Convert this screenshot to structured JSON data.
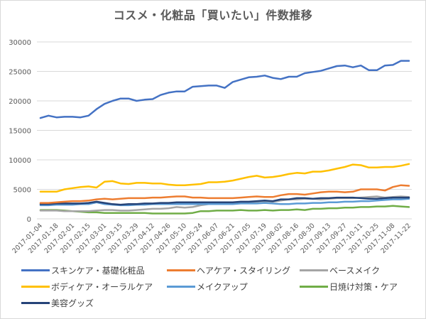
{
  "chart_data": {
    "type": "line",
    "title": "コスメ・化粧品「買いたい」件数推移",
    "xlabel": "",
    "ylabel": "",
    "ylim": [
      0,
      30000
    ],
    "yticks": [
      0,
      5000,
      10000,
      15000,
      20000,
      25000,
      30000
    ],
    "ytick_labels": [
      "0",
      "5000",
      "10000",
      "15000",
      "20000",
      "25000",
      "30000"
    ],
    "grid": true,
    "legend_position": "bottom",
    "x": [
      "2017-01-04",
      "2017-01-11",
      "2017-01-18",
      "2017-01-25",
      "2017-02-01",
      "2017-02-08",
      "2017-02-15",
      "2017-02-22",
      "2017-03-01",
      "2017-03-08",
      "2017-03-15",
      "2017-03-22",
      "2017-03-29",
      "2017-04-05",
      "2017-04-12",
      "2017-04-19",
      "2017-04-26",
      "2017-05-03",
      "2017-05-10",
      "2017-05-17",
      "2017-05-24",
      "2017-05-31",
      "2017-06-07",
      "2017-06-14",
      "2017-06-21",
      "2017-06-28",
      "2017-07-05",
      "2017-07-12",
      "2017-07-19",
      "2017-07-26",
      "2017-08-02",
      "2017-08-09",
      "2017-08-16",
      "2017-08-23",
      "2017-08-30",
      "2017-09-06",
      "2017-09-13",
      "2017-09-20",
      "2017-09-27",
      "2017-10-04",
      "2017-10-11",
      "2017-10-18",
      "2017-10-25",
      "2017-11-01",
      "2017-11-08",
      "2017-11-15",
      "2017-11-22"
    ],
    "xtick_labels": [
      "2017-01-04",
      "2017-01-18",
      "2017-02-01",
      "2017-02-15",
      "2017-03-01",
      "2017-03-15",
      "2017-03-29",
      "2017-04-12",
      "2017-04-26",
      "2017-05-10",
      "2017-05-24",
      "2017-06-07",
      "2017-06-21",
      "2017-07-05",
      "2017-07-19",
      "2017-08-02",
      "2017-08-16",
      "2017-08-30",
      "2017-09-13",
      "2017-09-27",
      "2017-10-11",
      "2017-10-25",
      "2017-11-08",
      "2017-11-22"
    ],
    "series": [
      {
        "name": "スキンケア・基礎化粧品",
        "color": "#4472c4",
        "values": [
          17100,
          17500,
          17200,
          17300,
          17300,
          17200,
          17500,
          18600,
          19500,
          20000,
          20400,
          20400,
          20000,
          20200,
          20300,
          21000,
          21400,
          21600,
          21600,
          22400,
          22500,
          22600,
          22600,
          22200,
          23200,
          23600,
          24000,
          24100,
          24300,
          23900,
          23700,
          24100,
          24100,
          24700,
          24900,
          25100,
          25500,
          25900,
          26000,
          25700,
          26000,
          25200,
          25200,
          26000,
          26100,
          26800,
          26800
        ]
      },
      {
        "name": "ヘアケア・スタイリング",
        "color": "#ed7d31",
        "values": [
          2700,
          2700,
          2800,
          2900,
          3000,
          3000,
          3100,
          3300,
          3400,
          3300,
          3400,
          3500,
          3500,
          3500,
          3600,
          3600,
          3700,
          3800,
          3800,
          3600,
          3600,
          3500,
          3500,
          3500,
          3500,
          3600,
          3700,
          3800,
          3700,
          3700,
          4000,
          4200,
          4200,
          4100,
          4300,
          4500,
          4600,
          4600,
          4500,
          4600,
          5000,
          5000,
          5000,
          4800,
          5400,
          5700,
          5600
        ]
      },
      {
        "name": "ベースメイク",
        "color": "#a5a5a5",
        "values": [
          1400,
          1400,
          1400,
          1300,
          1300,
          1300,
          1300,
          1400,
          1500,
          1500,
          1400,
          1400,
          1500,
          1600,
          1700,
          1700,
          1800,
          2000,
          1900,
          2000,
          2300,
          2500,
          2600,
          2600,
          2700,
          2800,
          2800,
          2900,
          3000,
          2900,
          3100,
          3300,
          3300,
          3400,
          3400,
          3300,
          3400,
          3500,
          3500,
          3500,
          3600,
          3700,
          3800,
          3600,
          3700,
          3800,
          3700
        ]
      },
      {
        "name": "ボディケア・オーラルケア",
        "color": "#ffc000",
        "values": [
          4600,
          4600,
          4600,
          5000,
          5200,
          5400,
          5500,
          5300,
          6300,
          6400,
          6000,
          5900,
          6100,
          6100,
          6000,
          6000,
          5800,
          5700,
          5700,
          5800,
          5900,
          6200,
          6200,
          6300,
          6500,
          6800,
          7100,
          7300,
          7000,
          7100,
          7300,
          7600,
          7800,
          7700,
          8000,
          8000,
          8200,
          8500,
          8800,
          9200,
          9100,
          8700,
          8700,
          8800,
          8800,
          9000,
          9300
        ]
      },
      {
        "name": "メイクアップ",
        "color": "#5b9bd5",
        "values": [
          2300,
          2300,
          2400,
          2400,
          2400,
          2500,
          2500,
          2800,
          2500,
          2400,
          2300,
          2300,
          2400,
          2400,
          2500,
          2500,
          2500,
          2500,
          2500,
          2500,
          2500,
          2500,
          2500,
          2500,
          2500,
          2600,
          2600,
          2600,
          2700,
          2600,
          2500,
          2500,
          2600,
          2600,
          2700,
          2700,
          2800,
          2800,
          2900,
          2900,
          3000,
          3000,
          3100,
          3200,
          3300,
          3300,
          3400
        ]
      },
      {
        "name": "日焼け対策・ケア",
        "color": "#70ad47",
        "values": [
          1500,
          1500,
          1500,
          1400,
          1300,
          1200,
          1100,
          1100,
          1000,
          1000,
          1000,
          1000,
          1000,
          1000,
          900,
          900,
          900,
          900,
          900,
          1000,
          1300,
          1300,
          1400,
          1400,
          1400,
          1500,
          1400,
          1400,
          1500,
          1400,
          1500,
          1500,
          1600,
          1500,
          1700,
          1700,
          1800,
          1800,
          1900,
          1900,
          2000,
          2000,
          2100,
          2100,
          2200,
          2100,
          2000
        ]
      },
      {
        "name": "美容グッズ",
        "color": "#264478",
        "values": [
          2500,
          2500,
          2600,
          2600,
          2600,
          2600,
          2700,
          2900,
          2700,
          2500,
          2400,
          2500,
          2500,
          2600,
          2600,
          2700,
          2700,
          2800,
          2800,
          2800,
          2800,
          2800,
          2800,
          2800,
          2800,
          2900,
          2900,
          3000,
          3100,
          3000,
          3300,
          3300,
          3500,
          3500,
          3400,
          3500,
          3500,
          3600,
          3600,
          3600,
          3500,
          3400,
          3400,
          3500,
          3600,
          3600,
          3600
        ]
      }
    ]
  }
}
